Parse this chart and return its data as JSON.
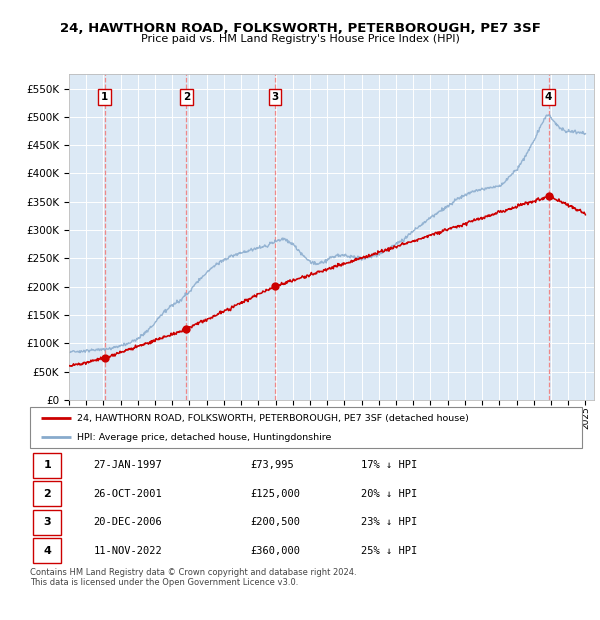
{
  "title1": "24, HAWTHORN ROAD, FOLKSWORTH, PETERBOROUGH, PE7 3SF",
  "title2": "Price paid vs. HM Land Registry's House Price Index (HPI)",
  "background_color": "#dce9f5",
  "plot_bg_color": "#dce9f5",
  "sale_dates_num": [
    1997.07,
    2001.82,
    2006.97,
    2022.86
  ],
  "sale_prices": [
    73995,
    125000,
    200500,
    360000
  ],
  "sale_labels": [
    "1",
    "2",
    "3",
    "4"
  ],
  "sale_label_info": [
    {
      "num": "1",
      "date": "27-JAN-1997",
      "price": "£73,995",
      "pct": "17% ↓ HPI"
    },
    {
      "num": "2",
      "date": "26-OCT-2001",
      "price": "£125,000",
      "pct": "20% ↓ HPI"
    },
    {
      "num": "3",
      "date": "20-DEC-2006",
      "price": "£200,500",
      "pct": "23% ↓ HPI"
    },
    {
      "num": "4",
      "date": "11-NOV-2022",
      "price": "£360,000",
      "pct": "25% ↓ HPI"
    }
  ],
  "legend_line1": "24, HAWTHORN ROAD, FOLKSWORTH, PETERBOROUGH, PE7 3SF (detached house)",
  "legend_line2": "HPI: Average price, detached house, Huntingdonshire",
  "footer": "Contains HM Land Registry data © Crown copyright and database right 2024.\nThis data is licensed under the Open Government Licence v3.0.",
  "ylim": [
    0,
    575000
  ],
  "xlim_start": 1995.0,
  "xlim_end": 2025.5,
  "red_line_color": "#cc0000",
  "blue_line_color": "#88aacc",
  "sale_marker_color": "#cc0000",
  "dashed_line_color": "#ee8888",
  "grid_color": "#ffffff",
  "border_box_color": "#cc0000"
}
